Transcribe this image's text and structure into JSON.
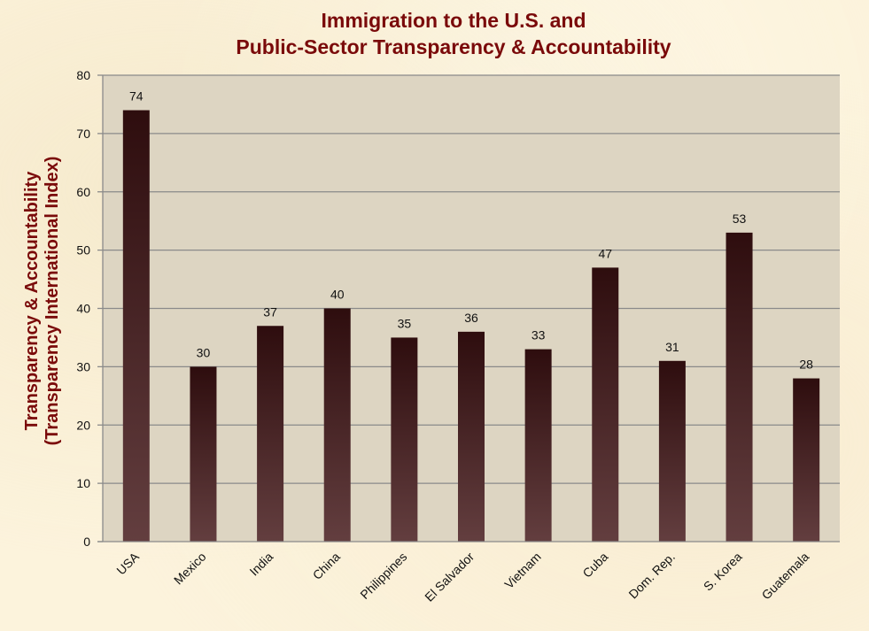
{
  "chart_data": {
    "type": "bar",
    "title_lines": [
      "Immigration to the U.S. and",
      "Public-Sector Transparency & Accountability"
    ],
    "ylabel_lines": [
      "Transparency & Accountability",
      "(Transparency International Index)"
    ],
    "xlabel": "",
    "categories": [
      "USA",
      "Mexico",
      "India",
      "China",
      "Philippines",
      "El Salvador",
      "Vietnam",
      "Cuba",
      "Dom. Rep.",
      "S. Korea",
      "Guatemala"
    ],
    "values": [
      74,
      30,
      37,
      40,
      35,
      36,
      33,
      47,
      31,
      53,
      28
    ],
    "ylim": [
      0,
      80
    ],
    "yticks": [
      0,
      10,
      20,
      30,
      40,
      50,
      60,
      70,
      80
    ],
    "grid": true,
    "legend": "none",
    "data_labels": true,
    "colors": {
      "bar_top": "#2e0d0e",
      "bar_bottom": "#633e3f",
      "plot_bg": "#ddd5c2",
      "grid": "#8a8a8a",
      "title": "#7a0a0a"
    }
  }
}
